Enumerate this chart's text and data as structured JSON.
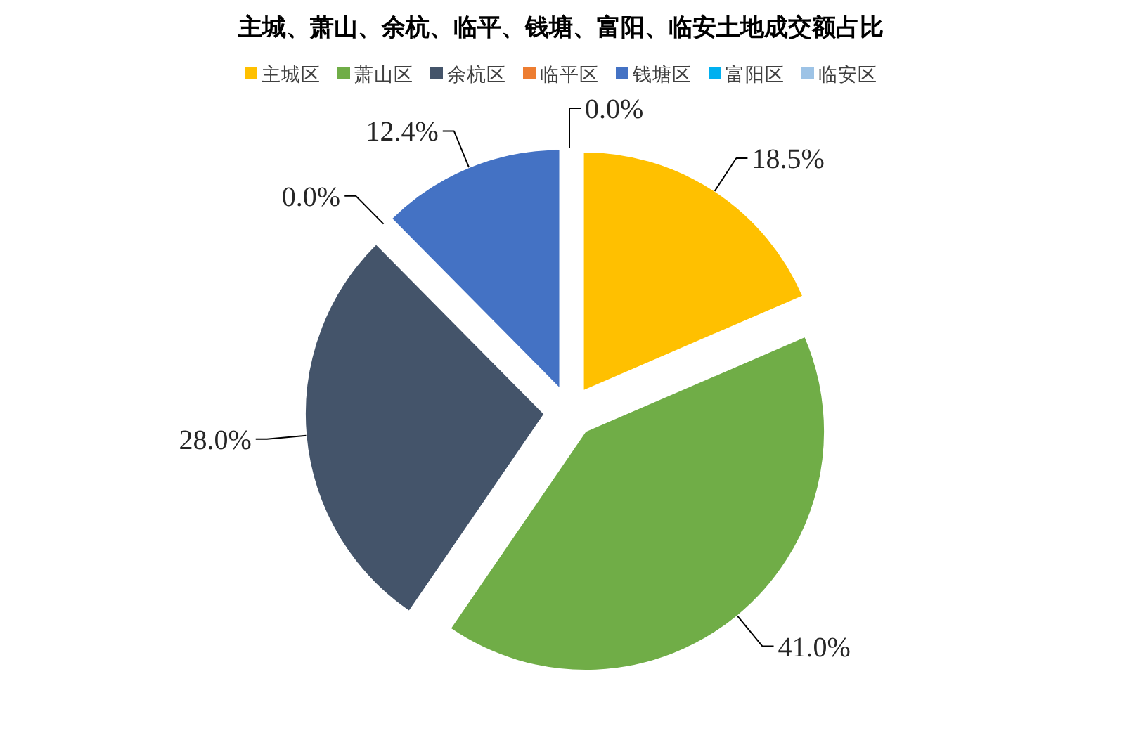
{
  "chart_data": {
    "type": "pie",
    "title": "主城、萧山、余杭、临平、钱塘、富阳、临安土地成交额占比",
    "categories": [
      "主城区",
      "萧山区",
      "余杭区",
      "临平区",
      "钱塘区",
      "富阳区",
      "临安区"
    ],
    "values": [
      18.5,
      41.0,
      28.0,
      0.0,
      12.4,
      0.0,
      0.0
    ],
    "colors": [
      "#ffc000",
      "#70ad47",
      "#44546a",
      "#ed7d31",
      "#4472c4",
      "#00b0f0",
      "#9dc3e6"
    ],
    "value_labels": [
      "18.5%",
      "41.0%",
      "28.0%",
      "0.0%",
      "12.4%",
      "0.0%",
      null
    ],
    "legend": "top"
  }
}
